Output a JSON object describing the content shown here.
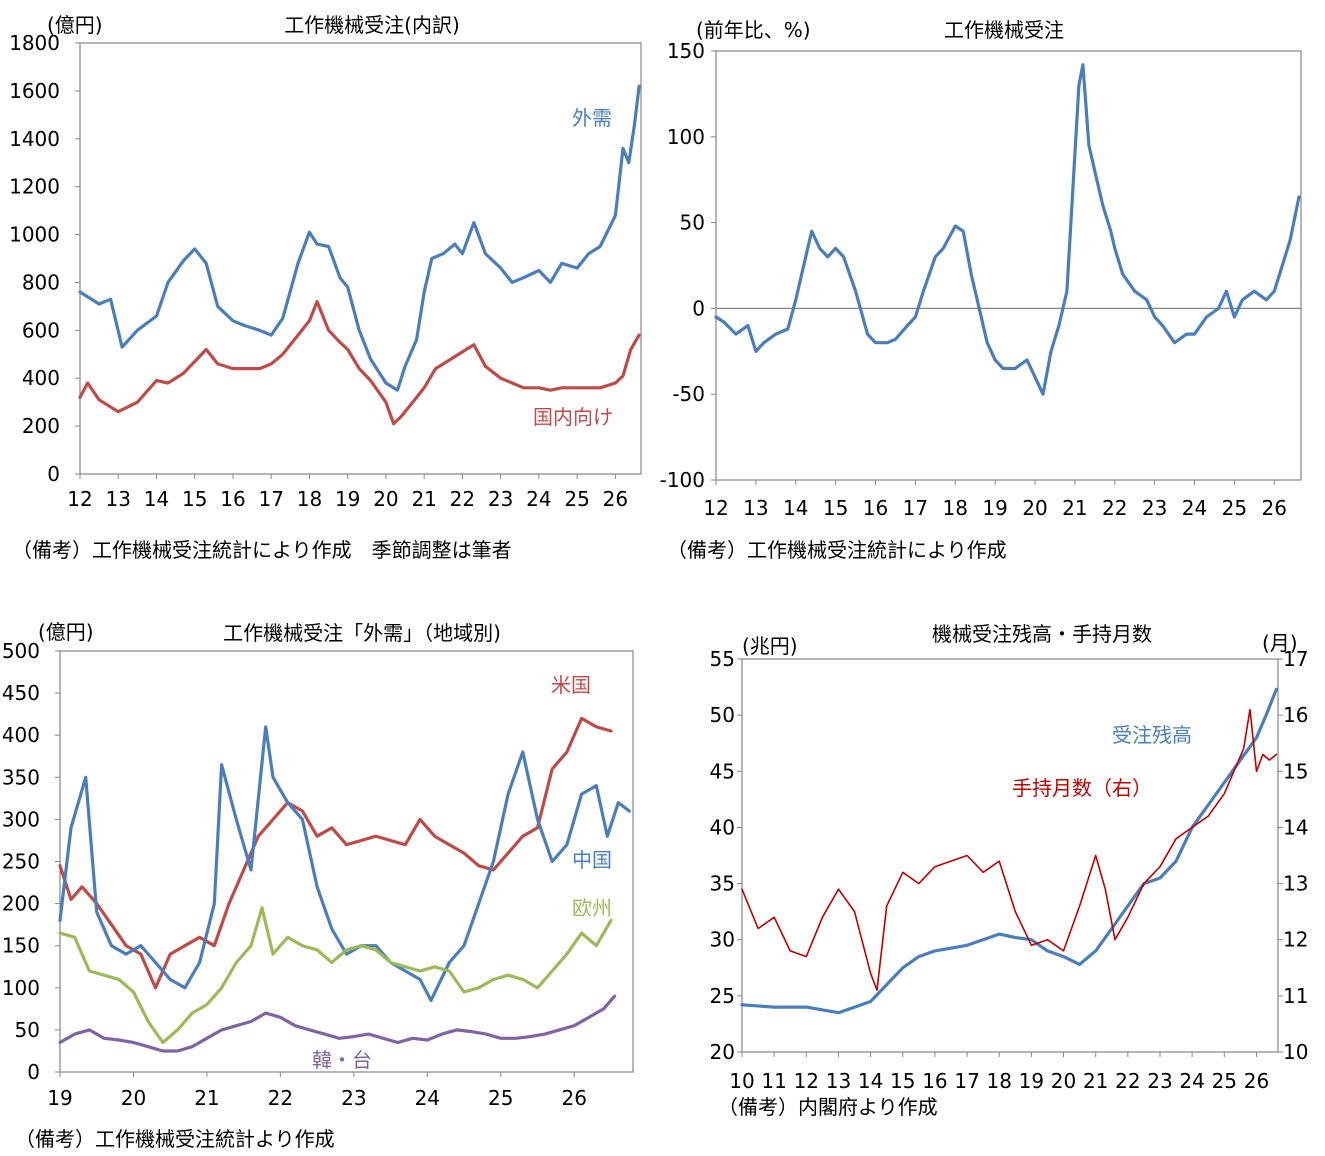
{
  "charts": [
    {
      "title": "工作機械受注(内訳)",
      "unit_label": "(億円)",
      "note": "（備考）工作機械受注統計により作成　季節調整は筆者"
    },
    {
      "title": "工作機械受注",
      "unit_label": "(前年比、%)",
      "note": "（備考）工作機械受注統計により作成"
    },
    {
      "title": "工作機械受注「外需」（地域別)",
      "unit_label": "(億円)",
      "note": "（備考）工作機械受注統計より作成"
    },
    {
      "title": "機械受注残高・手持月数",
      "unit_label_left": "(兆円)",
      "unit_label_right": "(月)",
      "note": "（備考）内閣府より作成"
    }
  ],
  "chart_data": [
    {
      "type": "line",
      "title": "工作機械受注(内訳)",
      "ylabel": "(億円)",
      "ylim": [
        0,
        1800
      ],
      "yticks": [
        0,
        200,
        400,
        600,
        800,
        1000,
        1200,
        1400,
        1600,
        1800
      ],
      "xlim": [
        12,
        26.67
      ],
      "xticks": [
        "12",
        "13",
        "14",
        "15",
        "16",
        "17",
        "18",
        "19",
        "20",
        "21",
        "22",
        "23",
        "24",
        "25",
        "26"
      ],
      "grid": false,
      "series": [
        {
          "name": "外需",
          "color": "#4a7ebb",
          "x": [
            12.0,
            12.5,
            12.8,
            13.1,
            13.5,
            14.0,
            14.3,
            14.7,
            15.0,
            15.3,
            15.6,
            16.0,
            16.3,
            16.7,
            17.0,
            17.3,
            17.7,
            18.0,
            18.2,
            18.5,
            18.8,
            19.0,
            19.3,
            19.6,
            20.0,
            20.3,
            20.5,
            20.8,
            21.0,
            21.2,
            21.5,
            21.8,
            22.0,
            22.3,
            22.6,
            23.0,
            23.3,
            23.6,
            24.0,
            24.3,
            24.6,
            25.0,
            25.3,
            25.6,
            26.0,
            26.2,
            26.35,
            26.5,
            26.62
          ],
          "y": [
            760,
            710,
            730,
            530,
            600,
            660,
            800,
            890,
            940,
            880,
            700,
            640,
            620,
            600,
            580,
            650,
            880,
            1010,
            960,
            950,
            820,
            780,
            600,
            480,
            380,
            350,
            450,
            560,
            760,
            900,
            920,
            960,
            920,
            1050,
            920,
            860,
            800,
            820,
            850,
            800,
            880,
            860,
            920,
            950,
            1080,
            1360,
            1300,
            1460,
            1620
          ]
        },
        {
          "name": "国内向け",
          "color": "#be4b48",
          "x": [
            12.0,
            12.2,
            12.5,
            13.0,
            13.5,
            14.0,
            14.3,
            14.7,
            15.0,
            15.3,
            15.6,
            16.0,
            16.3,
            16.7,
            17.0,
            17.3,
            17.7,
            18.0,
            18.2,
            18.5,
            18.8,
            19.0,
            19.3,
            19.6,
            20.0,
            20.2,
            20.4,
            20.7,
            21.0,
            21.3,
            21.6,
            22.0,
            22.3,
            22.6,
            23.0,
            23.3,
            23.6,
            24.0,
            24.3,
            24.6,
            25.0,
            25.3,
            25.6,
            26.0,
            26.2,
            26.4,
            26.62
          ],
          "y": [
            320,
            380,
            310,
            260,
            300,
            390,
            380,
            420,
            470,
            520,
            460,
            440,
            440,
            440,
            460,
            500,
            580,
            640,
            720,
            600,
            550,
            520,
            440,
            390,
            300,
            210,
            240,
            300,
            360,
            440,
            470,
            510,
            540,
            450,
            400,
            380,
            360,
            360,
            350,
            360,
            360,
            360,
            360,
            380,
            410,
            520,
            580
          ]
        }
      ],
      "labels": [
        "外需",
        "国内向け"
      ]
    },
    {
      "type": "line",
      "title": "工作機械受注",
      "ylabel": "(前年比、%)",
      "ylim": [
        -100,
        150
      ],
      "yticks": [
        -100,
        -50,
        0,
        50,
        100,
        150
      ],
      "xlim": [
        12,
        26.67
      ],
      "xticks": [
        "12",
        "13",
        "14",
        "15",
        "16",
        "17",
        "18",
        "19",
        "20",
        "21",
        "22",
        "23",
        "24",
        "25",
        "26"
      ],
      "grid": false,
      "reference_line": 0,
      "series": [
        {
          "name": "工作機械受注",
          "color": "#4a7ebb",
          "x": [
            12.0,
            12.2,
            12.5,
            12.8,
            13.0,
            13.2,
            13.5,
            13.8,
            14.0,
            14.2,
            14.4,
            14.6,
            14.8,
            15.0,
            15.2,
            15.5,
            15.8,
            16.0,
            16.3,
            16.5,
            16.8,
            17.0,
            17.2,
            17.5,
            17.7,
            18.0,
            18.2,
            18.4,
            18.6,
            18.8,
            19.0,
            19.2,
            19.5,
            19.8,
            20.0,
            20.2,
            20.4,
            20.6,
            20.8,
            21.0,
            21.1,
            21.2,
            21.35,
            21.5,
            21.7,
            21.9,
            22.0,
            22.2,
            22.5,
            22.8,
            23.0,
            23.2,
            23.5,
            23.8,
            24.0,
            24.3,
            24.6,
            24.8,
            25.0,
            25.2,
            25.5,
            25.8,
            26.0,
            26.2,
            26.4,
            26.62
          ],
          "y": [
            -5,
            -8,
            -15,
            -10,
            -25,
            -20,
            -15,
            -12,
            5,
            25,
            45,
            35,
            30,
            35,
            30,
            10,
            -15,
            -20,
            -20,
            -18,
            -10,
            -5,
            10,
            30,
            35,
            48,
            45,
            20,
            0,
            -20,
            -30,
            -35,
            -35,
            -30,
            -40,
            -50,
            -25,
            -10,
            10,
            90,
            130,
            142,
            95,
            80,
            60,
            45,
            35,
            20,
            10,
            5,
            -5,
            -10,
            -20,
            -15,
            -15,
            -5,
            0,
            10,
            -5,
            5,
            10,
            5,
            10,
            25,
            40,
            65
          ]
        }
      ]
    },
    {
      "type": "line",
      "title": "工作機械受注「外需」（地域別)",
      "ylabel": "(億円)",
      "ylim": [
        0,
        500
      ],
      "yticks": [
        0,
        50,
        100,
        150,
        200,
        250,
        300,
        350,
        400,
        450,
        500
      ],
      "xlim": [
        19,
        26.8
      ],
      "xticks": [
        "19",
        "20",
        "21",
        "22",
        "23",
        "24",
        "25",
        "26"
      ],
      "grid": false,
      "series": [
        {
          "name": "米国",
          "color": "#be4b48",
          "x": [
            19.0,
            19.15,
            19.3,
            19.5,
            19.7,
            19.9,
            20.1,
            20.3,
            20.5,
            20.7,
            20.9,
            21.1,
            21.3,
            21.5,
            21.7,
            21.9,
            22.1,
            22.3,
            22.5,
            22.7,
            22.9,
            23.1,
            23.3,
            23.5,
            23.7,
            23.9,
            24.1,
            24.3,
            24.5,
            24.7,
            24.9,
            25.1,
            25.3,
            25.5,
            25.7,
            25.9,
            26.1,
            26.3,
            26.5
          ],
          "y": [
            245,
            205,
            220,
            200,
            175,
            150,
            140,
            100,
            140,
            150,
            160,
            150,
            200,
            240,
            280,
            300,
            320,
            310,
            280,
            290,
            270,
            275,
            280,
            275,
            270,
            300,
            280,
            270,
            260,
            245,
            240,
            260,
            280,
            290,
            360,
            380,
            420,
            410,
            405
          ]
        },
        {
          "name": "中国",
          "color": "#4a7ebb",
          "x": [
            19.0,
            19.15,
            19.35,
            19.5,
            19.7,
            19.9,
            20.1,
            20.3,
            20.5,
            20.7,
            20.9,
            21.1,
            21.2,
            21.4,
            21.6,
            21.8,
            21.9,
            22.1,
            22.3,
            22.5,
            22.7,
            22.9,
            23.1,
            23.3,
            23.5,
            23.7,
            23.9,
            24.05,
            24.3,
            24.5,
            24.7,
            24.9,
            25.1,
            25.3,
            25.5,
            25.7,
            25.9,
            26.1,
            26.3,
            26.45,
            26.6,
            26.75
          ],
          "y": [
            180,
            290,
            350,
            190,
            150,
            140,
            150,
            130,
            110,
            100,
            130,
            200,
            365,
            300,
            240,
            410,
            350,
            320,
            300,
            220,
            170,
            140,
            150,
            150,
            130,
            120,
            110,
            85,
            130,
            150,
            200,
            250,
            330,
            380,
            300,
            250,
            270,
            330,
            340,
            280,
            320,
            310
          ]
        },
        {
          "name": "欧州",
          "color": "#9bbb59",
          "x": [
            19.0,
            19.2,
            19.4,
            19.6,
            19.8,
            20.0,
            20.2,
            20.4,
            20.6,
            20.8,
            21.0,
            21.2,
            21.4,
            21.6,
            21.75,
            21.9,
            22.1,
            22.3,
            22.5,
            22.7,
            22.9,
            23.1,
            23.3,
            23.5,
            23.7,
            23.9,
            24.1,
            24.3,
            24.5,
            24.7,
            24.9,
            25.1,
            25.3,
            25.5,
            25.7,
            25.9,
            26.1,
            26.3,
            26.5
          ],
          "y": [
            165,
            160,
            120,
            115,
            110,
            95,
            60,
            35,
            50,
            70,
            80,
            100,
            130,
            150,
            195,
            140,
            160,
            150,
            145,
            130,
            145,
            150,
            145,
            130,
            125,
            120,
            125,
            120,
            95,
            100,
            110,
            115,
            110,
            100,
            120,
            140,
            165,
            150,
            180
          ]
        },
        {
          "name": "韓・台",
          "color": "#8064a2",
          "x": [
            19.0,
            19.2,
            19.4,
            19.6,
            19.8,
            20.0,
            20.2,
            20.4,
            20.6,
            20.8,
            21.0,
            21.2,
            21.4,
            21.6,
            21.8,
            22.0,
            22.2,
            22.4,
            22.6,
            22.8,
            23.0,
            23.2,
            23.4,
            23.6,
            23.8,
            24.0,
            24.2,
            24.4,
            24.6,
            24.8,
            25.0,
            25.2,
            25.4,
            25.6,
            25.8,
            26.0,
            26.2,
            26.4,
            26.55
          ],
          "y": [
            35,
            45,
            50,
            40,
            38,
            35,
            30,
            25,
            25,
            30,
            40,
            50,
            55,
            60,
            70,
            65,
            55,
            50,
            45,
            40,
            42,
            45,
            40,
            35,
            40,
            38,
            45,
            50,
            48,
            45,
            40,
            40,
            42,
            45,
            50,
            55,
            65,
            75,
            90
          ]
        }
      ],
      "labels": [
        "米国",
        "中国",
        "欧州",
        "韓・台"
      ]
    },
    {
      "type": "line",
      "title": "機械受注残高・手持月数",
      "ylabel": "(兆円)",
      "y2label": "(月)",
      "ylim": [
        20,
        55
      ],
      "yticks": [
        20,
        25,
        30,
        35,
        40,
        45,
        50,
        55
      ],
      "y2lim": [
        10,
        17
      ],
      "y2ticks": [
        10,
        11,
        12,
        13,
        14,
        15,
        16,
        17
      ],
      "xlim": [
        10,
        26.67
      ],
      "xticks": [
        "10",
        "11",
        "12",
        "13",
        "14",
        "15",
        "16",
        "17",
        "18",
        "19",
        "20",
        "21",
        "22",
        "23",
        "24",
        "25",
        "26"
      ],
      "grid": false,
      "series": [
        {
          "name": "受注残高",
          "axis": "left",
          "color": "#4a7ebb",
          "x": [
            10.0,
            11.0,
            12.0,
            13.0,
            14.0,
            14.5,
            15.0,
            15.5,
            16.0,
            17.0,
            18.0,
            18.5,
            19.0,
            19.5,
            20.0,
            20.5,
            21.0,
            21.5,
            22.0,
            22.5,
            23.0,
            23.5,
            24.0,
            24.5,
            25.0,
            25.5,
            26.0,
            26.3,
            26.62
          ],
          "y": [
            24.2,
            24.0,
            24.0,
            23.5,
            24.5,
            26,
            27.5,
            28.5,
            29,
            29.5,
            30.5,
            30.2,
            30,
            29,
            28.5,
            27.8,
            29,
            31,
            33,
            35,
            35.5,
            37,
            40,
            42,
            44,
            46,
            48,
            50,
            52.3
          ]
        },
        {
          "name": "手持月数（右）",
          "axis": "right",
          "color": "#c00000",
          "x": [
            10.0,
            10.5,
            11.0,
            11.5,
            12.0,
            12.5,
            13.0,
            13.5,
            14.0,
            14.2,
            14.5,
            15.0,
            15.5,
            16.0,
            16.5,
            17.0,
            17.5,
            18.0,
            18.5,
            19.0,
            19.5,
            20.0,
            20.5,
            21.0,
            21.3,
            21.6,
            22.0,
            22.5,
            23.0,
            23.5,
            24.0,
            24.5,
            25.0,
            25.3,
            25.6,
            25.8,
            26.0,
            26.2,
            26.4,
            26.62
          ],
          "y": [
            12.9,
            12.2,
            12.4,
            11.8,
            11.7,
            12.4,
            12.9,
            12.5,
            11.4,
            11.1,
            12.6,
            13.2,
            13.0,
            13.3,
            13.4,
            13.5,
            13.2,
            13.4,
            12.5,
            11.9,
            12.0,
            11.8,
            12.6,
            13.5,
            12.9,
            12.0,
            12.4,
            13.0,
            13.3,
            13.8,
            14.0,
            14.2,
            14.6,
            15.0,
            15.4,
            16.1,
            15.0,
            15.3,
            15.2,
            15.3
          ]
        }
      ],
      "labels": [
        "受注残高",
        "手持月数（右）"
      ]
    }
  ]
}
